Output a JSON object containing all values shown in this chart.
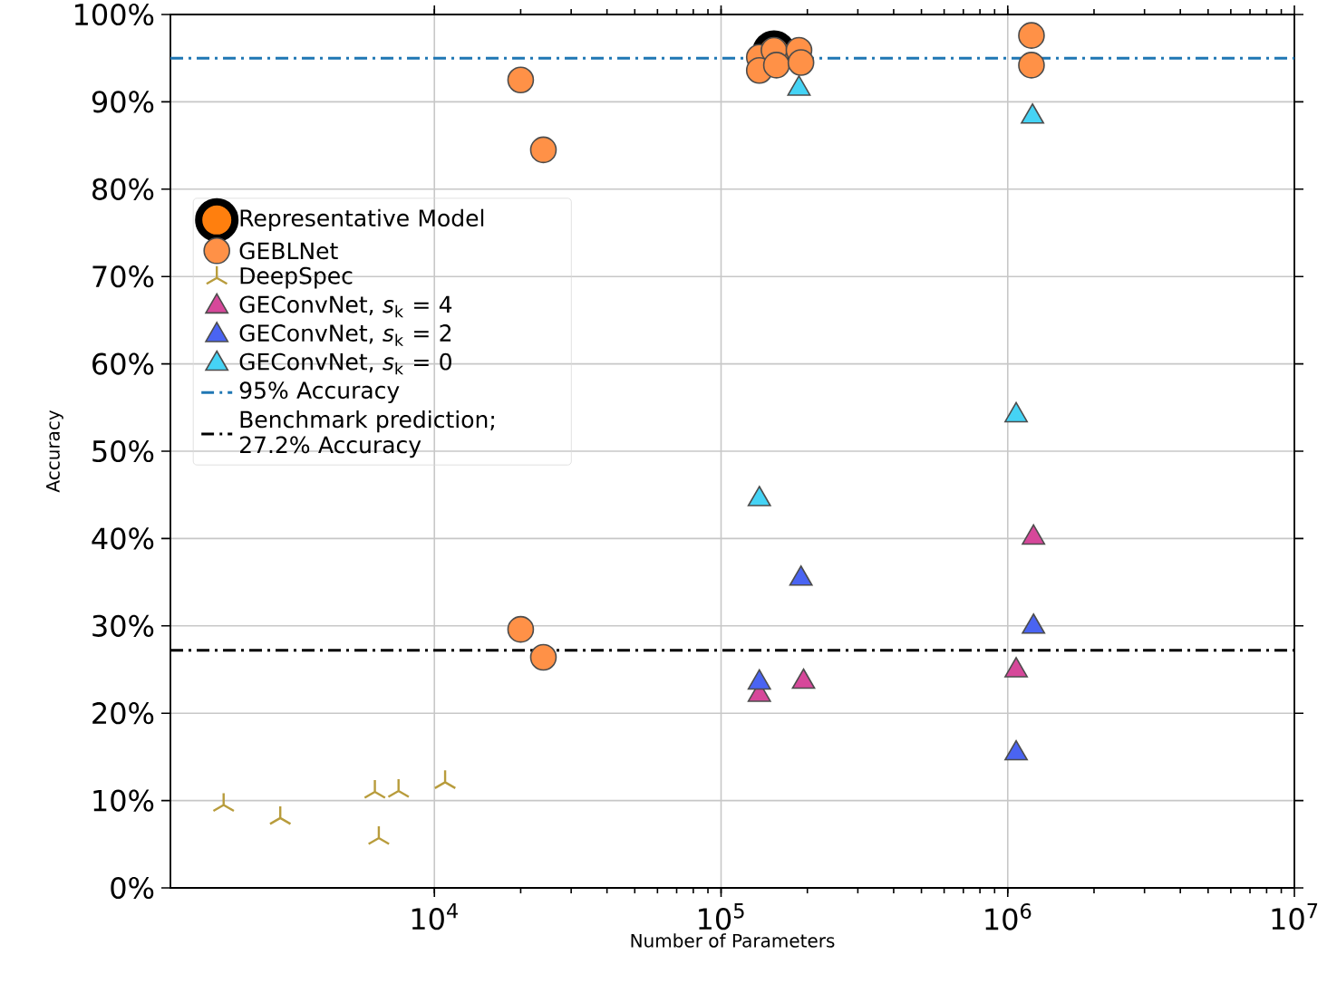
{
  "chart_data": {
    "type": "scatter",
    "xlabel": "Number of Parameters",
    "ylabel": "Accuracy",
    "log": "x",
    "xlim": [
      1200,
      10000000
    ],
    "ylim": [
      0,
      100
    ],
    "xticks": [
      {
        "value": 10000,
        "label": "10$^{4}$"
      },
      {
        "value": 100000,
        "label": "10$^{5}$"
      },
      {
        "value": 1000000,
        "label": "10$^{6}$"
      },
      {
        "value": 10000000,
        "label": "10$^{7}$"
      }
    ],
    "yticks": [
      {
        "value": 0,
        "label": "0%"
      },
      {
        "value": 10,
        "label": "10%"
      },
      {
        "value": 20,
        "label": "20%"
      },
      {
        "value": 30,
        "label": "30%"
      },
      {
        "value": 40,
        "label": "40%"
      },
      {
        "value": 50,
        "label": "50%"
      },
      {
        "value": 60,
        "label": "60%"
      },
      {
        "value": 70,
        "label": "70%"
      },
      {
        "value": 80,
        "label": "80%"
      },
      {
        "value": 90,
        "label": "90%"
      },
      {
        "value": 100,
        "label": "100%"
      }
    ],
    "grid": true,
    "legend": "left",
    "series": [
      {
        "name": "Representative Model",
        "color": "#ff7f0e",
        "marker": "circle",
        "x": [
          153000
        ],
        "values": [
          95.7
        ]
      },
      {
        "name": "GEBLNet",
        "color": "#ff9147",
        "marker": "circle",
        "x": [
          20000,
          24000,
          20000,
          24000,
          136000,
          136000,
          153000,
          156000,
          187000,
          190000,
          1210000,
          1210000
        ],
        "values": [
          92.5,
          84.5,
          29.6,
          26.4,
          95.1,
          93.6,
          95.9,
          94.2,
          95.9,
          94.5,
          97.6,
          94.2
        ]
      },
      {
        "name": "DeepSpec",
        "color": "#b89c3c",
        "marker": "cross",
        "x": [
          1840,
          2900,
          6200,
          7500,
          6400,
          10900
        ],
        "values": [
          9.5,
          8.0,
          11.0,
          11.1,
          5.7,
          12.1
        ]
      },
      {
        "name": "GEConvNet, *s*$_{k}$ = 4",
        "color": "#d6489a",
        "marker": "triangle",
        "x": [
          1230000,
          1070000,
          194000,
          136000
        ],
        "values": [
          40.1,
          24.9,
          23.6,
          22.1
        ]
      },
      {
        "name": "GEConvNet, *s*$_{k}$ = 2",
        "color": "#4a64f2",
        "marker": "triangle",
        "x": [
          190000,
          1230000,
          136000,
          1070000
        ],
        "values": [
          35.4,
          29.9,
          23.5,
          15.4
        ]
      },
      {
        "name": "GEConvNet, *s*$_{k}$ = 0",
        "color": "#45d3f5",
        "marker": "triangle",
        "x": [
          187000,
          1220000,
          1070000,
          136000
        ],
        "values": [
          91.5,
          88.3,
          54.1,
          44.5
        ]
      }
    ],
    "ref_lines": [
      {
        "axis": "y",
        "value": 95,
        "label": "95% Accuracy",
        "color": "#1f77b4",
        "line_style": "dashdot"
      },
      {
        "axis": "y",
        "value": 27.2,
        "label": "Benchmark prediction; 27.2% Accuracy",
        "color": "#000000",
        "line_style": "dashdot"
      }
    ]
  }
}
